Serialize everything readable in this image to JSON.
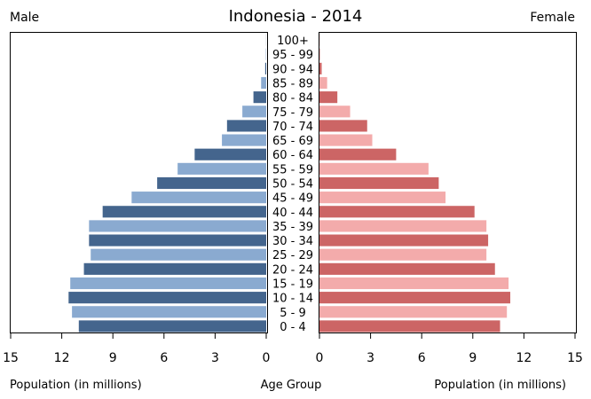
{
  "title": "Indonesia - 2014",
  "male_label": "Male",
  "female_label": "Female",
  "male_axis_title": "Population (in millions)",
  "age_axis_title": "Age Group",
  "female_axis_title": "Population (in millions)",
  "colors": {
    "male_dark": "#44658d",
    "male_light": "#8aaad0",
    "female_dark": "#cc6565",
    "female_light": "#f3abab"
  },
  "chart_data": {
    "type": "bar",
    "title": "Indonesia - 2014",
    "xlabel": "Population (in millions)",
    "ylabel": "Age Group",
    "xlim": [
      0,
      15
    ],
    "ticks": [
      15,
      12,
      9,
      6,
      3,
      0
    ],
    "categories": [
      "0 - 4",
      "5 - 9",
      "10 - 14",
      "15 - 19",
      "20 - 24",
      "25 - 29",
      "30 - 34",
      "35 - 39",
      "40 - 44",
      "45 - 49",
      "50 - 54",
      "55 - 59",
      "60 - 64",
      "65 - 69",
      "70 - 74",
      "75 - 79",
      "80 - 84",
      "85 - 89",
      "90 - 94",
      "95 - 99",
      "100+"
    ],
    "series": [
      {
        "name": "Male",
        "values": [
          11.0,
          11.4,
          11.6,
          11.5,
          10.7,
          10.3,
          10.4,
          10.4,
          9.6,
          7.9,
          6.4,
          5.2,
          4.2,
          2.6,
          2.3,
          1.4,
          0.75,
          0.3,
          0.06,
          0.02,
          0.005
        ]
      },
      {
        "name": "Female",
        "values": [
          10.6,
          11.0,
          11.2,
          11.1,
          10.3,
          9.8,
          9.9,
          9.8,
          9.1,
          7.4,
          7.0,
          6.4,
          4.5,
          3.1,
          2.8,
          1.8,
          1.05,
          0.45,
          0.13,
          0.04,
          0.01
        ]
      }
    ]
  }
}
